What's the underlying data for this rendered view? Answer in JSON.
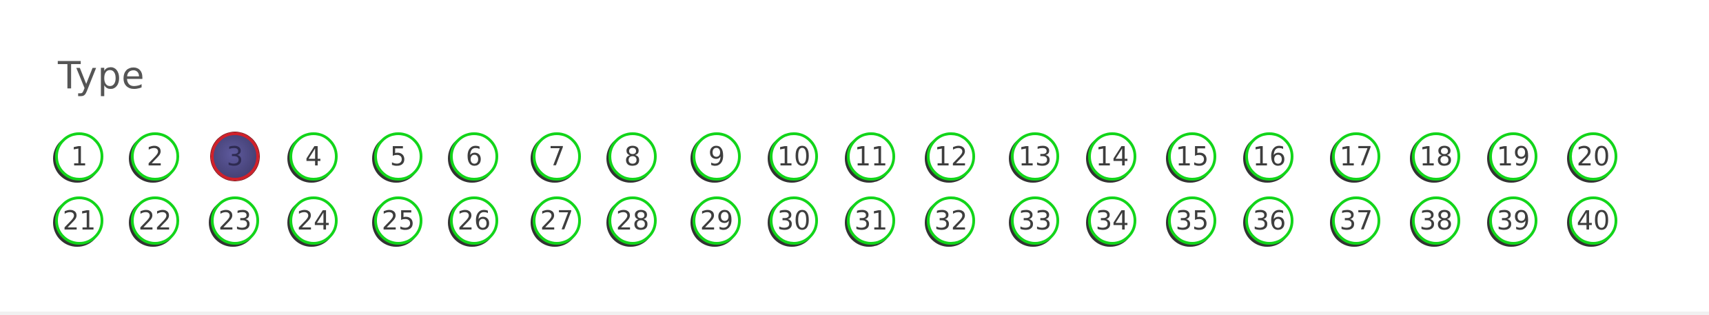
{
  "section": {
    "title": "Type"
  },
  "selected_type": "3",
  "options": {
    "row1": [
      "1",
      "2",
      "3",
      "4",
      "5",
      "6",
      "7",
      "8",
      "9",
      "10",
      "11",
      "12",
      "13",
      "14",
      "15",
      "16",
      "17",
      "18",
      "19",
      "20"
    ],
    "row2": [
      "21",
      "22",
      "23",
      "24",
      "25",
      "26",
      "27",
      "28",
      "29",
      "30",
      "31",
      "32",
      "33",
      "34",
      "35",
      "36",
      "37",
      "38",
      "39",
      "40"
    ]
  },
  "colors": {
    "ring_default": "#12d51a",
    "ring_selected": "#d0202a",
    "fill_selected": "#4b477f",
    "text": "#3e3e3e",
    "title": "#555555"
  }
}
